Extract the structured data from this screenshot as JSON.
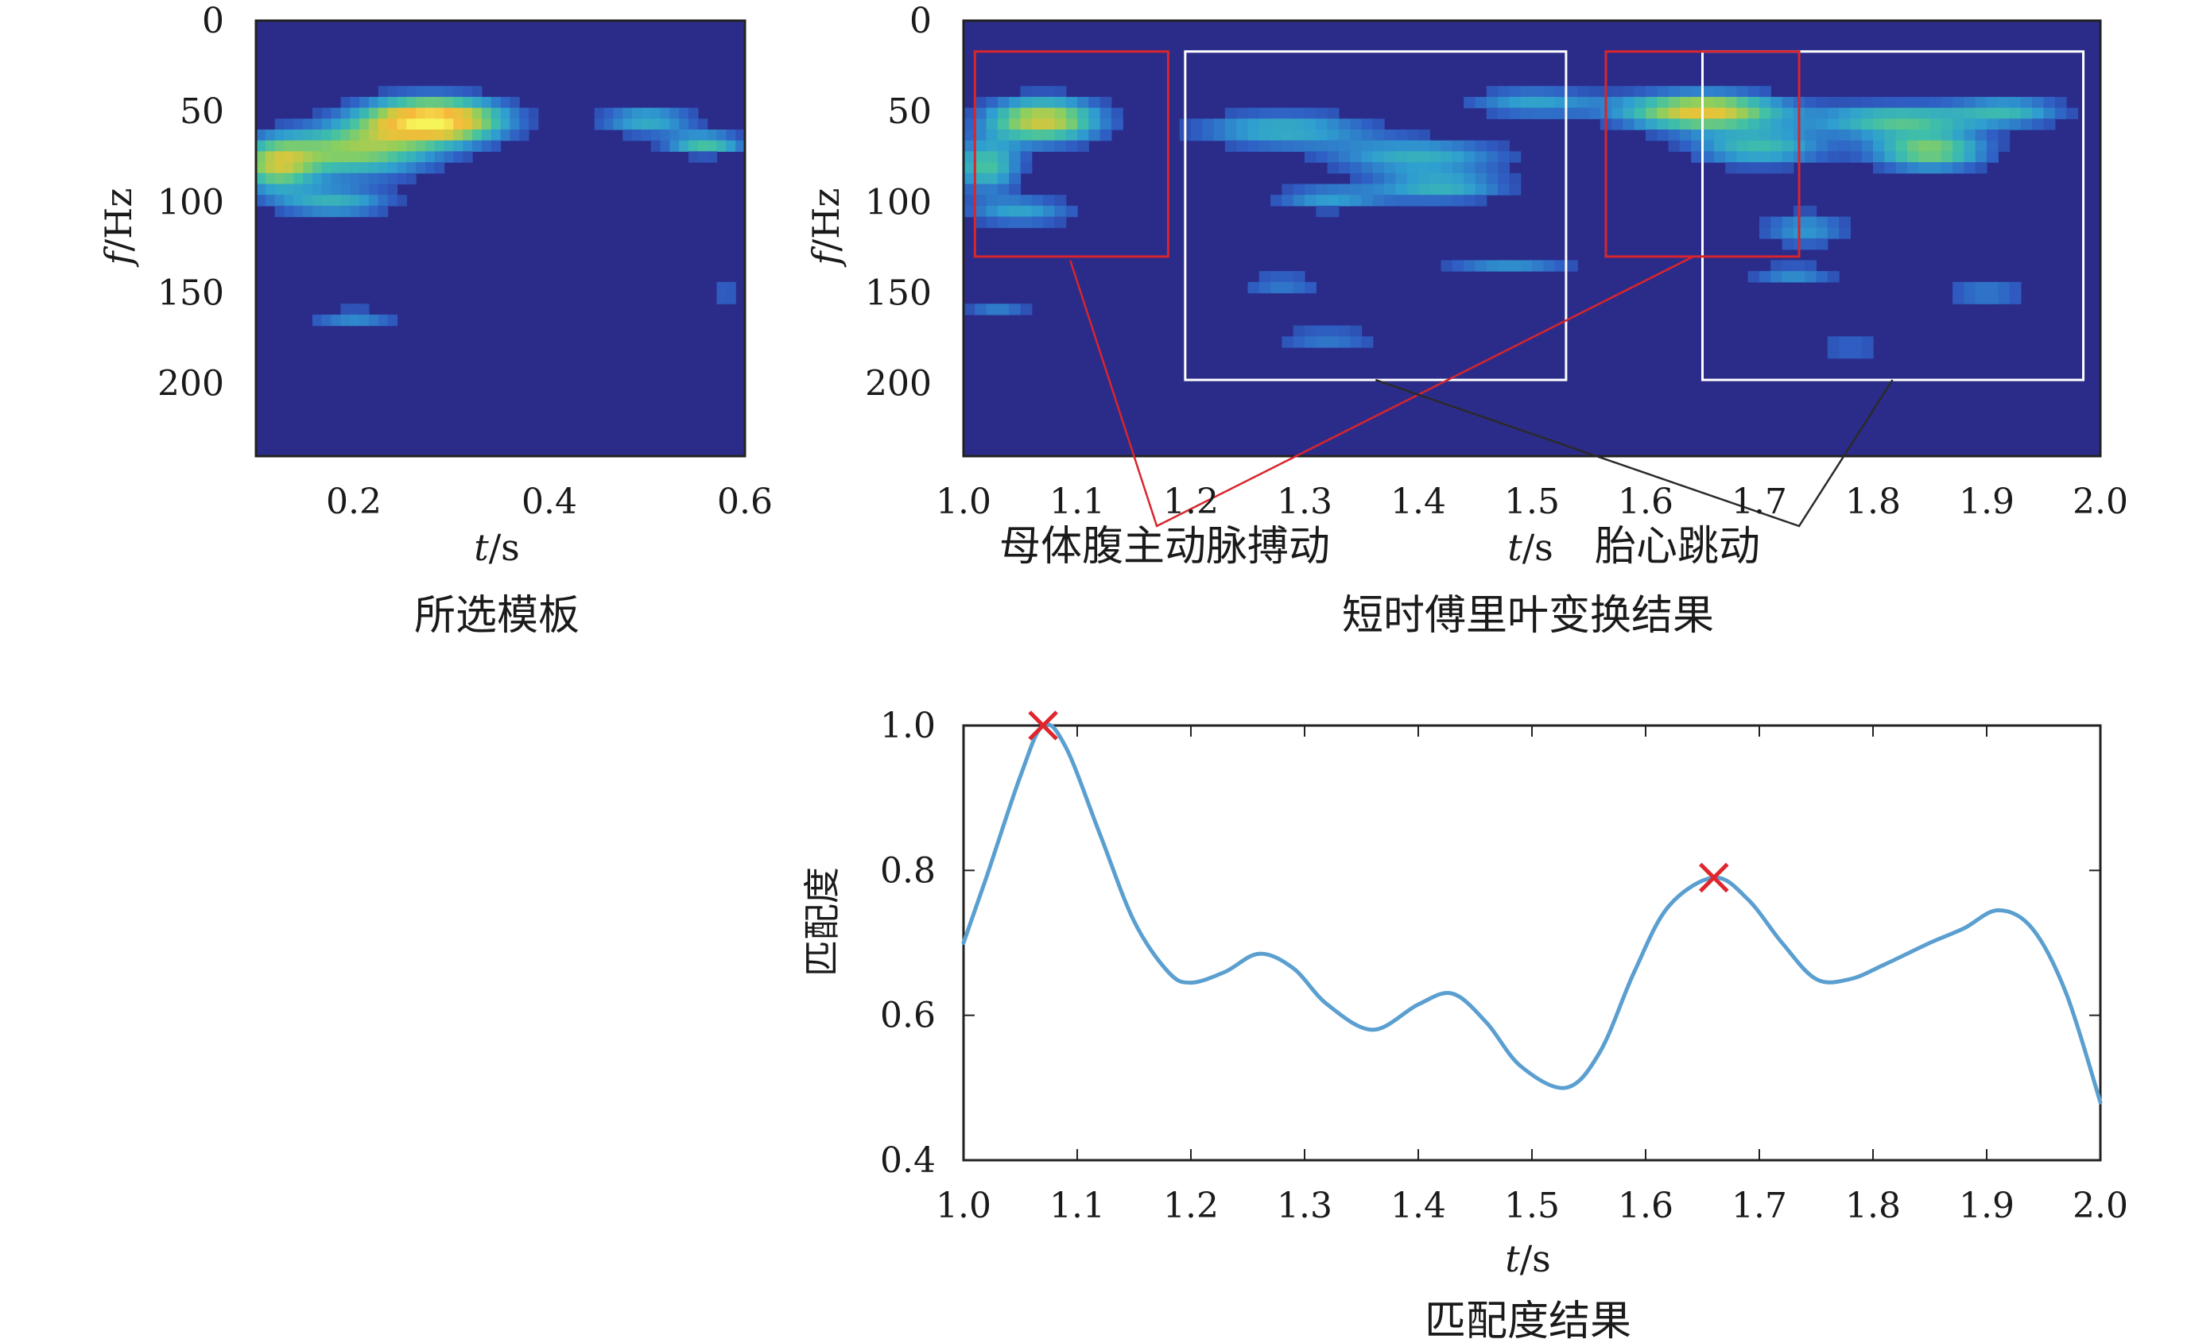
{
  "chart_data": [
    {
      "id": "template",
      "type": "heatmap",
      "caption": "所选模板",
      "xlabel_var": "t",
      "xlabel_unit": "/s",
      "ylabel_var": "f",
      "ylabel_unit": "/Hz",
      "xlim": [
        0.1,
        0.6
      ],
      "ylim": [
        0,
        240
      ],
      "x_ticks": [
        "0.2",
        "0.4",
        "0.6"
      ],
      "x_tick_values": [
        0.2,
        0.4,
        0.6
      ],
      "y_ticks": [
        "0",
        "50",
        "100",
        "150",
        "200"
      ],
      "y_tick_values": [
        0,
        50,
        100,
        150,
        200
      ],
      "colormap": [
        "#2b2c8a",
        "#2f5fc4",
        "#2f9ed0",
        "#3fc0a8",
        "#8ccf5e",
        "#e0c63a",
        "#f6b93b",
        "#f5f55a"
      ],
      "background_color": "#2b2c8a",
      "blobs": [
        {
          "t": 0.28,
          "f": 55,
          "st": 0.07,
          "sf": 12,
          "a": 1.0
        },
        {
          "t": 0.2,
          "f": 72,
          "st": 0.08,
          "sf": 14,
          "a": 0.55
        },
        {
          "t": 0.12,
          "f": 80,
          "st": 0.04,
          "sf": 14,
          "a": 0.55
        },
        {
          "t": 0.18,
          "f": 100,
          "st": 0.06,
          "sf": 8,
          "a": 0.35
        },
        {
          "t": 0.5,
          "f": 55,
          "st": 0.05,
          "sf": 8,
          "a": 0.35
        },
        {
          "t": 0.56,
          "f": 68,
          "st": 0.04,
          "sf": 6,
          "a": 0.45
        },
        {
          "t": 0.2,
          "f": 163,
          "st": 0.05,
          "sf": 4,
          "a": 0.3
        },
        {
          "t": 0.58,
          "f": 150,
          "st": 0.02,
          "sf": 5,
          "a": 0.2
        }
      ]
    },
    {
      "id": "stft",
      "type": "heatmap",
      "caption": "短时傅里叶变换结果",
      "xlabel_var": "t",
      "xlabel_unit": "/s",
      "ylabel_var": "f",
      "ylabel_unit": "/Hz",
      "xlim": [
        1.0,
        2.0
      ],
      "ylim": [
        0,
        240
      ],
      "x_ticks": [
        "1.0",
        "1.1",
        "1.2",
        "1.3",
        "1.4",
        "1.5",
        "1.6",
        "1.7",
        "1.8",
        "1.9",
        "2.0"
      ],
      "x_tick_values": [
        1.0,
        1.1,
        1.2,
        1.3,
        1.4,
        1.5,
        1.6,
        1.7,
        1.8,
        1.9,
        2.0
      ],
      "y_ticks": [
        "0",
        "50",
        "100",
        "150",
        "200"
      ],
      "y_tick_values": [
        0,
        50,
        100,
        150,
        200
      ],
      "colormap": [
        "#2b2c8a",
        "#2f5fc4",
        "#2f9ed0",
        "#3fc0a8",
        "#8ccf5e",
        "#e0c63a",
        "#f6b93b",
        "#f5f55a"
      ],
      "background_color": "#2b2c8a",
      "blobs": [
        {
          "t": 1.07,
          "f": 55,
          "st": 0.05,
          "sf": 12,
          "a": 0.7
        },
        {
          "t": 1.02,
          "f": 80,
          "st": 0.03,
          "sf": 14,
          "a": 0.45
        },
        {
          "t": 1.05,
          "f": 105,
          "st": 0.05,
          "sf": 8,
          "a": 0.3
        },
        {
          "t": 1.28,
          "f": 60,
          "st": 0.08,
          "sf": 10,
          "a": 0.35
        },
        {
          "t": 1.4,
          "f": 75,
          "st": 0.08,
          "sf": 10,
          "a": 0.35
        },
        {
          "t": 1.42,
          "f": 92,
          "st": 0.06,
          "sf": 8,
          "a": 0.35
        },
        {
          "t": 1.32,
          "f": 98,
          "st": 0.05,
          "sf": 7,
          "a": 0.28
        },
        {
          "t": 1.5,
          "f": 45,
          "st": 0.06,
          "sf": 8,
          "a": 0.3
        },
        {
          "t": 1.48,
          "f": 135,
          "st": 0.06,
          "sf": 6,
          "a": 0.25
        },
        {
          "t": 1.28,
          "f": 145,
          "st": 0.04,
          "sf": 6,
          "a": 0.22
        },
        {
          "t": 1.32,
          "f": 175,
          "st": 0.05,
          "sf": 6,
          "a": 0.22
        },
        {
          "t": 1.65,
          "f": 50,
          "st": 0.07,
          "sf": 10,
          "a": 0.75
        },
        {
          "t": 1.7,
          "f": 70,
          "st": 0.06,
          "sf": 10,
          "a": 0.4
        },
        {
          "t": 1.82,
          "f": 55,
          "st": 0.07,
          "sf": 9,
          "a": 0.45
        },
        {
          "t": 1.85,
          "f": 72,
          "st": 0.05,
          "sf": 10,
          "a": 0.55
        },
        {
          "t": 1.92,
          "f": 50,
          "st": 0.05,
          "sf": 8,
          "a": 0.35
        },
        {
          "t": 1.74,
          "f": 115,
          "st": 0.04,
          "sf": 10,
          "a": 0.28
        },
        {
          "t": 1.73,
          "f": 140,
          "st": 0.04,
          "sf": 6,
          "a": 0.25
        },
        {
          "t": 1.9,
          "f": 150,
          "st": 0.04,
          "sf": 8,
          "a": 0.22
        },
        {
          "t": 1.78,
          "f": 180,
          "st": 0.04,
          "sf": 6,
          "a": 0.18
        },
        {
          "t": 1.03,
          "f": 160,
          "st": 0.03,
          "sf": 5,
          "a": 0.22
        }
      ],
      "annotations": {
        "maternal_label": "母体腹主动脉搏动",
        "fetal_label": "胎心跳动",
        "maternal_color": "#d9252c",
        "fetal_color": "#ffffff",
        "maternal_boxes": [
          {
            "t0": 1.01,
            "t1": 1.18,
            "f0": 17,
            "f1": 130
          },
          {
            "t0": 1.565,
            "t1": 1.735,
            "f0": 17,
            "f1": 130
          }
        ],
        "fetal_boxes": [
          {
            "t0": 1.195,
            "t1": 1.53,
            "f0": 17,
            "f1": 198
          },
          {
            "t0": 1.65,
            "t1": 1.985,
            "f0": 17,
            "f1": 198
          }
        ]
      }
    },
    {
      "id": "match",
      "type": "line",
      "caption": "匹配度结果",
      "xlabel_var": "t",
      "xlabel_unit": "/s",
      "ylabel": "匹配度",
      "xlim": [
        1.0,
        2.0
      ],
      "ylim": [
        0.4,
        1.0
      ],
      "x_ticks": [
        "1.0",
        "1.1",
        "1.2",
        "1.3",
        "1.4",
        "1.5",
        "1.6",
        "1.7",
        "1.8",
        "1.9",
        "2.0"
      ],
      "x_tick_values": [
        1.0,
        1.1,
        1.2,
        1.3,
        1.4,
        1.5,
        1.6,
        1.7,
        1.8,
        1.9,
        2.0
      ],
      "y_ticks": [
        "0.4",
        "0.6",
        "0.8",
        "1.0"
      ],
      "y_tick_values": [
        0.4,
        0.6,
        0.8,
        1.0
      ],
      "line_color": "#5a9fd0",
      "marker_color": "#e0252c",
      "x": [
        1.0,
        1.02,
        1.05,
        1.07,
        1.09,
        1.12,
        1.15,
        1.18,
        1.2,
        1.23,
        1.26,
        1.29,
        1.32,
        1.36,
        1.4,
        1.43,
        1.46,
        1.49,
        1.53,
        1.56,
        1.59,
        1.62,
        1.66,
        1.69,
        1.72,
        1.75,
        1.78,
        1.81,
        1.85,
        1.88,
        1.91,
        1.94,
        1.97,
        2.0
      ],
      "y": [
        0.7,
        0.79,
        0.93,
        1.0,
        0.97,
        0.85,
        0.73,
        0.66,
        0.645,
        0.66,
        0.685,
        0.665,
        0.615,
        0.58,
        0.615,
        0.63,
        0.59,
        0.53,
        0.5,
        0.55,
        0.66,
        0.75,
        0.79,
        0.76,
        0.7,
        0.65,
        0.65,
        0.67,
        0.7,
        0.72,
        0.745,
        0.72,
        0.63,
        0.48
      ],
      "peaks": [
        {
          "t": 1.07,
          "v": 1.0
        },
        {
          "t": 1.66,
          "v": 0.79
        }
      ]
    }
  ]
}
